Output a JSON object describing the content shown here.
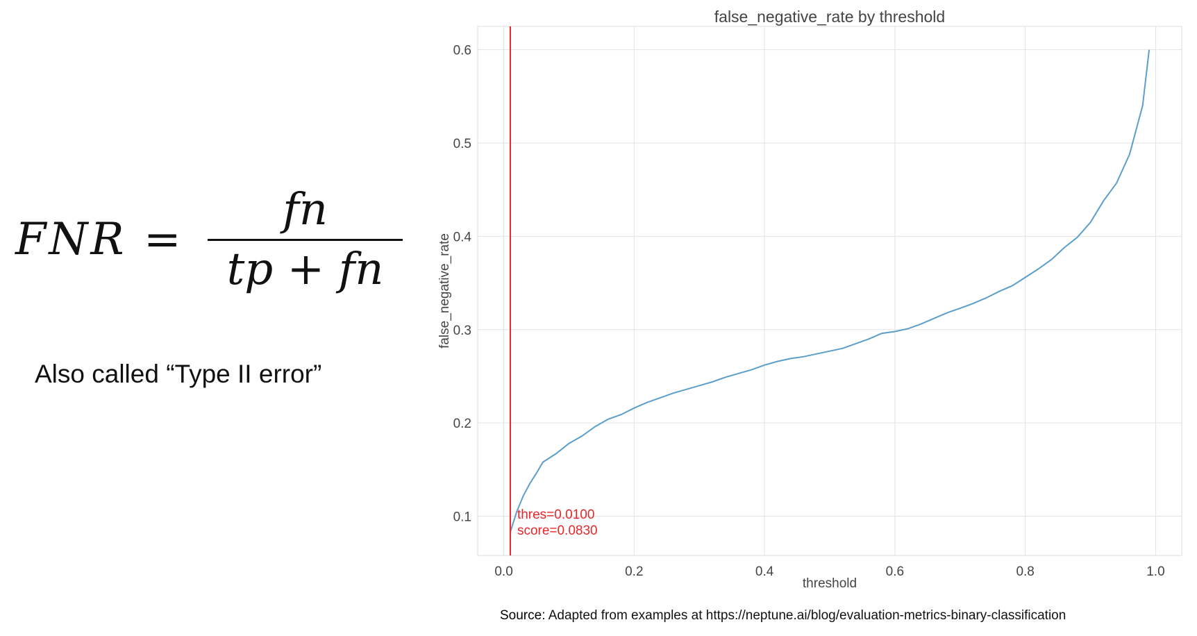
{
  "formula": {
    "lhs": "FNR =",
    "numerator": "fn",
    "denominator": "tp + fn"
  },
  "caption": "Also called “Type II error”",
  "source": {
    "label": "Source",
    "text": ": Adapted from examples at https://neptune.ai/blog/evaluation-metrics-binary-classification"
  },
  "chart_data": {
    "type": "line",
    "title": "false_negative_rate by threshold",
    "xlabel": "threshold",
    "ylabel": "false_negative_rate",
    "xlim": [
      -0.04,
      1.04
    ],
    "ylim": [
      0.058,
      0.625
    ],
    "xticks": [
      0.0,
      0.2,
      0.4,
      0.6,
      0.8,
      1.0
    ],
    "xtick_labels": [
      "0.0",
      "0.2",
      "0.4",
      "0.6",
      "0.8",
      "1.0"
    ],
    "yticks": [
      0.1,
      0.2,
      0.3,
      0.4,
      0.5,
      0.6
    ],
    "ytick_labels": [
      "0.1",
      "0.2",
      "0.3",
      "0.4",
      "0.5",
      "0.6"
    ],
    "grid": true,
    "line_color": "#5a9ec9",
    "marker_color": "#e8262a",
    "series": [
      {
        "x": [
          0.01,
          0.02,
          0.03,
          0.04,
          0.05,
          0.06,
          0.08,
          0.1,
          0.12,
          0.14,
          0.16,
          0.18,
          0.2,
          0.22,
          0.24,
          0.26,
          0.28,
          0.3,
          0.32,
          0.34,
          0.36,
          0.38,
          0.4,
          0.42,
          0.44,
          0.46,
          0.48,
          0.5,
          0.52,
          0.54,
          0.56,
          0.58,
          0.6,
          0.62,
          0.64,
          0.66,
          0.68,
          0.7,
          0.72,
          0.74,
          0.76,
          0.78,
          0.8,
          0.82,
          0.84,
          0.86,
          0.88,
          0.9,
          0.92,
          0.94,
          0.96,
          0.98,
          0.99
        ],
        "y": [
          0.083,
          0.105,
          0.122,
          0.135,
          0.146,
          0.158,
          0.167,
          0.178,
          0.186,
          0.196,
          0.204,
          0.209,
          0.216,
          0.222,
          0.227,
          0.232,
          0.236,
          0.24,
          0.244,
          0.249,
          0.253,
          0.257,
          0.262,
          0.266,
          0.269,
          0.271,
          0.274,
          0.277,
          0.28,
          0.285,
          0.29,
          0.296,
          0.298,
          0.301,
          0.306,
          0.312,
          0.318,
          0.323,
          0.328,
          0.334,
          0.341,
          0.347,
          0.356,
          0.365,
          0.375,
          0.388,
          0.399,
          0.415,
          0.438,
          0.457,
          0.488,
          0.54,
          0.6
        ]
      }
    ],
    "marker_x": 0.01,
    "annotation": {
      "line1": "thres=0.0100",
      "line2": "score=0.0830"
    }
  }
}
